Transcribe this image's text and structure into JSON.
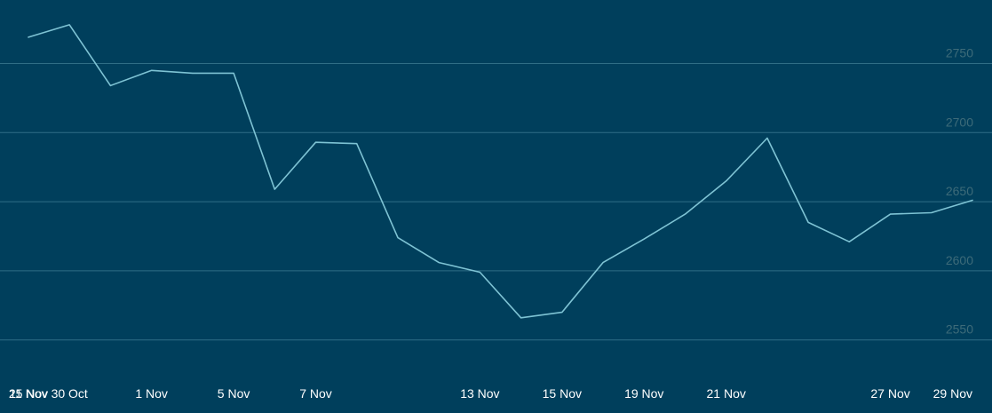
{
  "colors": {
    "background": "#003f5c",
    "line": "#7ec3d4",
    "grid": "#2f6e86",
    "y_tick_text": "#3d6b79",
    "x_tick_text": "#ffffff"
  },
  "chart_data": {
    "type": "line",
    "title": "",
    "xlabel": "",
    "ylabel": "",
    "grid": true,
    "legend": "none",
    "y_axis_side": "right",
    "ylim": [
      2525,
      2780
    ],
    "y_ticks": [
      2550,
      2600,
      2650,
      2700,
      2750
    ],
    "x_tick_labels": [
      "30 Oct",
      "1 Nov",
      "5 Nov",
      "7 Nov",
      "11 Nov",
      "13 Nov",
      "15 Nov",
      "19 Nov",
      "21 Nov",
      "25 Nov",
      "27 Nov",
      "29 Nov"
    ],
    "x": [
      "29 Oct",
      "30 Oct",
      "31 Oct",
      "1 Nov",
      "2 Nov",
      "5 Nov",
      "6 Nov",
      "7 Nov",
      "8 Nov",
      "9 Nov",
      "12 Nov",
      "13 Nov",
      "14 Nov",
      "15 Nov",
      "16 Nov",
      "19 Nov",
      "20 Nov",
      "21 Nov",
      "22 Nov",
      "23 Nov",
      "26 Nov",
      "27 Nov",
      "28 Nov",
      "29 Nov"
    ],
    "series": [
      {
        "values": [
          2769,
          2778,
          2734,
          2745,
          2743,
          2743,
          2659,
          2693,
          2692,
          2624,
          2606,
          2599,
          2566,
          2570,
          2606,
          2623,
          2641,
          2665,
          2696,
          2635,
          2621,
          2641,
          2642,
          2651
        ]
      }
    ]
  }
}
